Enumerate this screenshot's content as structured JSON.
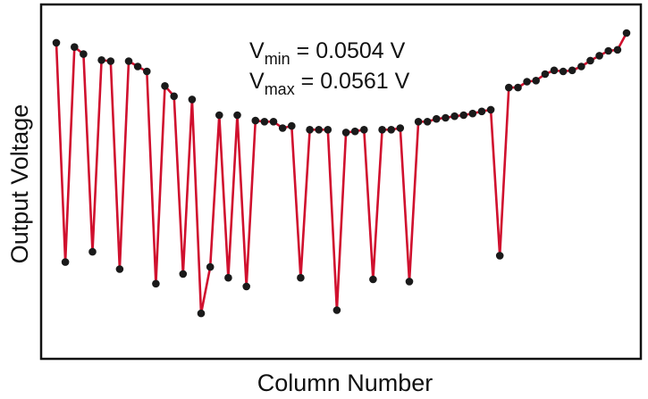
{
  "chart_data": {
    "type": "line",
    "xlabel": "Column Number",
    "ylabel": "Output Voltage",
    "annotations": [
      {
        "symbol": "V",
        "subscript": "min",
        "value": " = 0.0504 V"
      },
      {
        "symbol": "V",
        "subscript": "max",
        "value": " = 0.0561 V"
      }
    ],
    "ylim": [
      0.0504,
      0.0561
    ],
    "grid": false,
    "colors": {
      "line": "#d0102e",
      "marker": "#1a1a1a",
      "axis": "#111111"
    },
    "series": [
      {
        "x": [
          1,
          2,
          3,
          4,
          5,
          6,
          7,
          8,
          9,
          10,
          11,
          12,
          13,
          14,
          15,
          16,
          17,
          18,
          19,
          20,
          21,
          22,
          23,
          24,
          25,
          26,
          27,
          28,
          29,
          30,
          31,
          32,
          33,
          34,
          35,
          36,
          37,
          38,
          39,
          40,
          41,
          42,
          43,
          44,
          45,
          46,
          47,
          48,
          49,
          50,
          51,
          52,
          53,
          54,
          55,
          56,
          57,
          58,
          59,
          60,
          61,
          62,
          63,
          64
        ],
        "values": [
          0.05592,
          0.05186,
          0.05584,
          0.05571,
          0.05205,
          0.0556,
          0.05558,
          0.05173,
          0.05558,
          0.05548,
          0.05539,
          0.05146,
          0.05512,
          0.05493,
          0.05164,
          0.05487,
          0.05091,
          0.05177,
          0.05458,
          0.05157,
          0.05458,
          0.05141,
          0.05448,
          0.05446,
          0.05446,
          0.05434,
          0.05438,
          0.05157,
          0.05431,
          0.05431,
          0.05431,
          0.05097,
          0.05426,
          0.05428,
          0.05431,
          0.05154,
          0.05431,
          0.05431,
          0.05434,
          0.0515,
          0.05446,
          0.05446,
          0.05451,
          0.05453,
          0.05456,
          0.05458,
          0.05461,
          0.05465,
          0.05468,
          0.05198,
          0.05509,
          0.05509,
          0.0552,
          0.05522,
          0.05534,
          0.05541,
          0.05539,
          0.05541,
          0.05548,
          0.05559,
          0.05568,
          0.05577,
          0.05579,
          0.0561
        ]
      }
    ]
  }
}
